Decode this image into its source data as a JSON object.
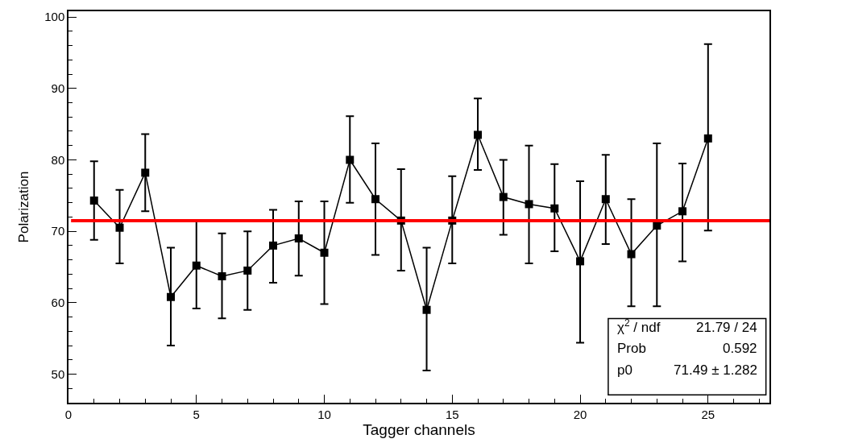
{
  "chart_data": {
    "type": "line",
    "xlabel": "Tagger channels",
    "ylabel": "Polarization",
    "x": [
      1,
      2,
      3,
      4,
      5,
      6,
      7,
      8,
      9,
      10,
      11,
      12,
      13,
      14,
      15,
      16,
      17,
      18,
      19,
      20,
      21,
      22,
      23,
      24,
      25
    ],
    "series": [
      {
        "color": "#000000",
        "values": [
          74.3,
          70.5,
          78.2,
          60.8,
          65.2,
          63.7,
          64.5,
          68.0,
          69.0,
          67.0,
          80.0,
          74.5,
          71.5,
          59.0,
          71.5,
          83.5,
          74.8,
          73.8,
          73.2,
          65.8,
          74.5,
          66.8,
          70.8,
          72.8,
          83.0
        ],
        "errors": [
          [
            68.8,
            79.8
          ],
          [
            65.5,
            75.8
          ],
          [
            72.8,
            83.6
          ],
          [
            54.0,
            67.7
          ],
          [
            59.2,
            71.6
          ],
          [
            57.8,
            69.7
          ],
          [
            59.0,
            70.0
          ],
          [
            62.8,
            73.0
          ],
          [
            63.8,
            74.2
          ],
          [
            59.8,
            74.2
          ],
          [
            74.0,
            86.1
          ],
          [
            66.7,
            82.3
          ],
          [
            64.5,
            78.7
          ],
          [
            50.5,
            67.7
          ],
          [
            65.5,
            77.7
          ],
          [
            78.6,
            88.6
          ],
          [
            69.5,
            80.0
          ],
          [
            65.5,
            82.0
          ],
          [
            67.2,
            79.4
          ],
          [
            54.4,
            77.0
          ],
          [
            68.2,
            80.7
          ],
          [
            59.5,
            74.5
          ],
          [
            59.5,
            82.3
          ],
          [
            65.8,
            79.5
          ],
          [
            70.1,
            96.2
          ]
        ]
      }
    ],
    "marker": "square",
    "line_style": "solid",
    "ref_lines": [
      {
        "axis": "y",
        "value": 71.49,
        "color": "#ff0000"
      }
    ],
    "annotations": [
      "χ$^{2}$ / ndf",
      "21.79 / 24",
      "Prob",
      "0.592",
      "p0",
      "71.49 ± 1.282"
    ],
    "xlim": [
      0,
      27.4
    ],
    "xticks": [
      0,
      5,
      10,
      15,
      20,
      25
    ],
    "ylim": [
      46,
      100.8
    ],
    "yticks": [
      50,
      60,
      70,
      80,
      90,
      100
    ]
  }
}
